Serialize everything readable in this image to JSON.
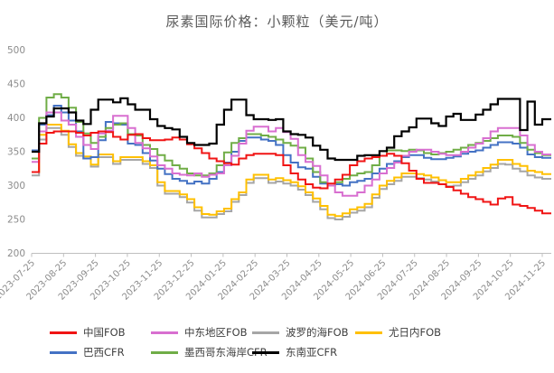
{
  "chart_data": {
    "type": "line",
    "line_style": "step-after",
    "title": "尿素国际价格：小颗粒（美元/吨）",
    "ylim": [
      200,
      500
    ],
    "y_ticks": [
      200,
      250,
      300,
      350,
      400,
      450,
      500
    ],
    "grid": false,
    "legend_position": "bottom",
    "x_tick_labels": [
      "2023-07-25",
      "2023-08-25",
      "2023-09-25",
      "2023-10-25",
      "2023-11-25",
      "2023-12-25",
      "2024-01-25",
      "2024-02-25",
      "2024-03-25",
      "2024-04-25",
      "2024-05-25",
      "2024-06-25",
      "2024-07-25",
      "2024-08-25",
      "2024-09-25",
      "2024-10-25",
      "2024-11-25"
    ],
    "x_unit": "weekly samples from 2023-07-25 to 2024-11-25",
    "axis_color": "#bfbfbf",
    "tick_label_color": "#8c8c8c",
    "title_color": "#595959",
    "series": [
      {
        "name": "中国FOB",
        "color": "#f01414",
        "values": [
          320,
          362,
          378,
          380,
          380,
          380,
          378,
          374,
          378,
          380,
          379,
          372,
          368,
          375,
          376,
          370,
          367,
          367,
          368,
          371,
          368,
          361,
          355,
          348,
          340,
          336,
          333,
          331,
          340,
          345,
          347,
          347,
          347,
          345,
          330,
          318,
          309,
          302,
          297,
          296,
          303,
          309,
          316,
          330,
          336,
          340,
          342,
          344,
          347,
          344,
          333,
          322,
          310,
          304,
          304,
          302,
          298,
          293,
          288,
          283,
          280,
          276,
          272,
          281,
          283,
          272,
          270,
          267,
          263,
          259
        ]
      },
      {
        "name": "中东地区FOB",
        "color": "#d86fd0",
        "values": [
          335,
          380,
          408,
          408,
          396,
          390,
          372,
          360,
          354,
          377,
          381,
          403,
          403,
          385,
          363,
          355,
          343,
          330,
          325,
          318,
          316,
          315,
          318,
          313,
          316,
          318,
          330,
          344,
          362,
          381,
          387,
          387,
          380,
          385,
          379,
          369,
          345,
          335,
          329,
          315,
          300,
          290,
          285,
          285,
          290,
          300,
          309,
          318,
          326,
          334,
          344,
          350,
          353,
          353,
          350,
          347,
          345,
          345,
          350,
          356,
          362,
          370,
          380,
          385,
          385,
          385,
          374,
          360,
          350,
          346
        ]
      },
      {
        "name": "波罗的海FOB",
        "color": "#a6a6a6",
        "values": [
          315,
          368,
          385,
          385,
          375,
          357,
          344,
          340,
          328,
          342,
          342,
          332,
          338,
          338,
          338,
          332,
          326,
          300,
          288,
          288,
          283,
          275,
          263,
          253,
          253,
          258,
          262,
          276,
          286,
          304,
          311,
          311,
          304,
          306,
          303,
          300,
          294,
          286,
          276,
          265,
          252,
          250,
          254,
          260,
          263,
          268,
          282,
          295,
          302,
          307,
          313,
          313,
          311,
          309,
          306,
          302,
          299,
          300,
          305,
          310,
          315,
          321,
          326,
          332,
          331,
          325,
          321,
          315,
          312,
          310
        ]
      },
      {
        "name": "尤日内FOB",
        "color": "#ffc000",
        "values": [
          320,
          375,
          390,
          390,
          381,
          361,
          348,
          343,
          331,
          346,
          346,
          336,
          342,
          342,
          342,
          336,
          330,
          305,
          292,
          292,
          287,
          280,
          268,
          258,
          257,
          262,
          266,
          280,
          290,
          309,
          316,
          316,
          309,
          311,
          308,
          305,
          299,
          290,
          281,
          270,
          257,
          255,
          259,
          265,
          268,
          273,
          287,
          300,
          307,
          312,
          318,
          318,
          317,
          315,
          312,
          308,
          305,
          305,
          310,
          315,
          320,
          326,
          331,
          338,
          338,
          332,
          329,
          322,
          320,
          317
        ]
      },
      {
        "name": "巴西CFR",
        "color": "#4472c4",
        "values": [
          352,
          390,
          404,
          418,
          408,
          396,
          380,
          340,
          342,
          367,
          394,
          392,
          390,
          362,
          360,
          348,
          337,
          325,
          317,
          310,
          307,
          303,
          306,
          303,
          310,
          320,
          334,
          350,
          366,
          371,
          371,
          368,
          366,
          360,
          345,
          334,
          327,
          325,
          313,
          303,
          300,
          302,
          300,
          305,
          307,
          310,
          318,
          325,
          332,
          336,
          342,
          345,
          345,
          341,
          339,
          339,
          341,
          343,
          347,
          350,
          352,
          356,
          360,
          364,
          364,
          362,
          356,
          346,
          342,
          341
        ]
      },
      {
        "name": "墨西哥东海岸CFR",
        "color": "#70ad47",
        "values": [
          340,
          400,
          430,
          435,
          430,
          415,
          394,
          377,
          363,
          372,
          385,
          390,
          392,
          376,
          374,
          360,
          354,
          345,
          337,
          330,
          325,
          318,
          315,
          315,
          318,
          330,
          349,
          363,
          370,
          376,
          376,
          374,
          372,
          368,
          363,
          359,
          356,
          340,
          320,
          305,
          300,
          305,
          310,
          315,
          318,
          320,
          330,
          344,
          352,
          352,
          351,
          353,
          352,
          348,
          346,
          348,
          350,
          353,
          356,
          360,
          363,
          366,
          370,
          374,
          374,
          372,
          363,
          353,
          348,
          345
        ]
      },
      {
        "name": "东南亚CFR",
        "color": "#000000",
        "values": [
          350,
          392,
          402,
          414,
          414,
          408,
          396,
          391,
          412,
          427,
          427,
          423,
          429,
          420,
          412,
          412,
          398,
          388,
          385,
          383,
          372,
          363,
          360,
          360,
          362,
          390,
          412,
          427,
          427,
          404,
          398,
          398,
          397,
          398,
          380,
          376,
          375,
          371,
          359,
          353,
          340,
          338,
          338,
          338,
          344,
          345,
          345,
          351,
          356,
          373,
          380,
          386,
          399,
          399,
          392,
          388,
          402,
          406,
          397,
          397,
          405,
          412,
          420,
          428,
          428,
          428,
          382,
          424,
          390,
          398
        ]
      }
    ],
    "draw_order": [
      2,
      3,
      4,
      5,
      1,
      0,
      6
    ],
    "legend_rows": [
      [
        0,
        1,
        2,
        3
      ],
      [
        4,
        5,
        6
      ]
    ]
  }
}
